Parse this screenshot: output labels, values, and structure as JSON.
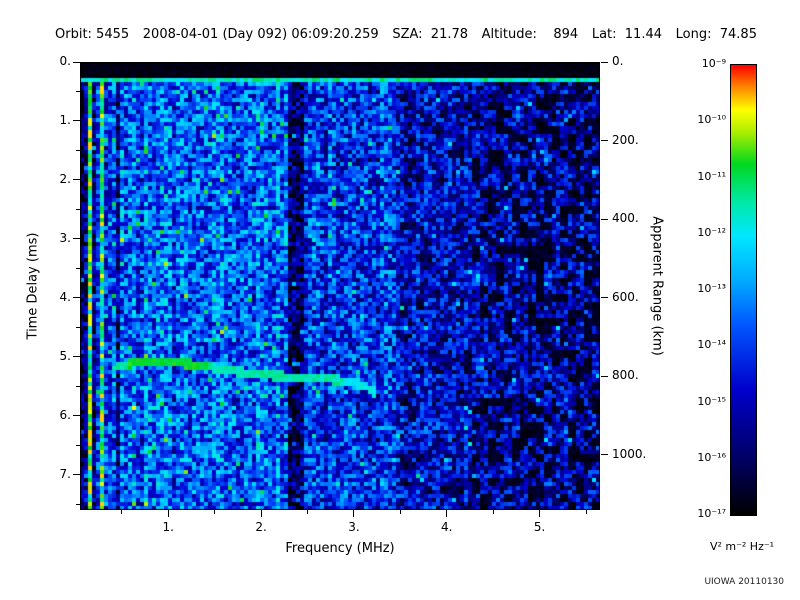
{
  "header": {
    "items": [
      "Orbit: 5455",
      "2008-04-01 (Day 092) 06:09:20.259",
      "SZA:  21.78",
      "Altitude:    894",
      "Lat:  11.44",
      "Long:  74.85"
    ]
  },
  "credit": "UIOWA 20110130",
  "chart_data": {
    "type": "heatmap",
    "title": "",
    "xlabel": "Frequency (MHz)",
    "ylabel": "Time Delay (ms)",
    "y2label": "Apparent Range (km)",
    "xlim": [
      0.05,
      5.65
    ],
    "ylim": [
      0,
      7.6
    ],
    "y2lim": [
      0,
      1140
    ],
    "range_km_per_ms": 150,
    "x_ticks": [
      1,
      2,
      3,
      4,
      5
    ],
    "x_tick_labels": [
      "1.",
      "2.",
      "3.",
      "4.",
      "5."
    ],
    "y_ticks": [
      0,
      1,
      2,
      3,
      4,
      5,
      6,
      7
    ],
    "y_tick_labels": [
      "0.",
      "1.",
      "2.",
      "3.",
      "4.",
      "5.",
      "6.",
      "7."
    ],
    "y2_ticks": [
      0,
      200,
      400,
      600,
      800,
      1000
    ],
    "y2_tick_labels": [
      "0.",
      "200.",
      "400.",
      "600.",
      "800.",
      "1000."
    ],
    "grid": false,
    "legend_position": "right-colorbar",
    "colorbar": {
      "unit_label": "V² m⁻² Hz⁻¹",
      "tick_labels": [
        "10⁻⁹",
        "10⁻¹⁰",
        "10⁻¹¹",
        "10⁻¹²",
        "10⁻¹³",
        "10⁻¹⁴",
        "10⁻¹⁵",
        "10⁻¹⁶",
        "10⁻¹⁷"
      ],
      "max_exponent": -9,
      "min_exponent": -17,
      "stops": [
        {
          "v": 0.0,
          "c": "#000000"
        },
        {
          "v": 0.12,
          "c": "#000060"
        },
        {
          "v": 0.28,
          "c": "#0000cc"
        },
        {
          "v": 0.42,
          "c": "#0055ff"
        },
        {
          "v": 0.52,
          "c": "#00aaff"
        },
        {
          "v": 0.62,
          "c": "#00e8ff"
        },
        {
          "v": 0.7,
          "c": "#00e8a0"
        },
        {
          "v": 0.78,
          "c": "#00d820"
        },
        {
          "v": 0.85,
          "c": "#aaee00"
        },
        {
          "v": 0.9,
          "c": "#ffff00"
        },
        {
          "v": 0.95,
          "c": "#ff8800"
        },
        {
          "v": 1.0,
          "c": "#ff0000"
        }
      ]
    },
    "features": {
      "transmit_blank": {
        "delay_min": 0,
        "delay_max": 0.24
      },
      "surface_line": {
        "delay": 0.3,
        "thickness_ms": 0.12
      },
      "dark_band": {
        "f_min": 2.3,
        "f_max": 2.46
      },
      "left_stripes": [
        {
          "f": 0.06,
          "w": 0.04,
          "v": 0.12
        },
        {
          "f": 0.1,
          "w": 0.05,
          "v": 0.22
        },
        {
          "f": 0.15,
          "w": 0.04,
          "v": 0.68
        },
        {
          "f": 0.21,
          "w": 0.03,
          "v": 0.15
        },
        {
          "f": 0.27,
          "w": 0.04,
          "v": 0.62
        },
        {
          "f": 0.45,
          "w": 0.04,
          "v": 0.18
        }
      ],
      "echo_trace": {
        "points": [
          [
            0.45,
            5.15
          ],
          [
            0.7,
            5.1
          ],
          [
            0.95,
            5.1
          ],
          [
            1.2,
            5.12
          ],
          [
            1.45,
            5.18
          ],
          [
            1.7,
            5.24
          ],
          [
            1.95,
            5.3
          ],
          [
            2.2,
            5.33
          ],
          [
            2.45,
            5.36
          ],
          [
            2.7,
            5.38
          ],
          [
            2.95,
            5.42
          ],
          [
            3.1,
            5.48
          ],
          [
            3.22,
            5.6
          ]
        ],
        "bright_f_range": [
          0.55,
          1.45
        ]
      }
    },
    "noise_regions": [
      {
        "f_min": 0.05,
        "f_max": 0.38,
        "base": 0.38
      },
      {
        "f_min": 0.38,
        "f_max": 2.3,
        "base": 0.42
      },
      {
        "f_min": 2.3,
        "f_max": 2.46,
        "base": 0.13
      },
      {
        "f_min": 2.46,
        "f_max": 3.55,
        "base": 0.34
      },
      {
        "f_min": 3.55,
        "f_max": 4.35,
        "base": 0.27
      },
      {
        "f_min": 4.35,
        "f_max": 5.65,
        "base": 0.23
      }
    ]
  }
}
